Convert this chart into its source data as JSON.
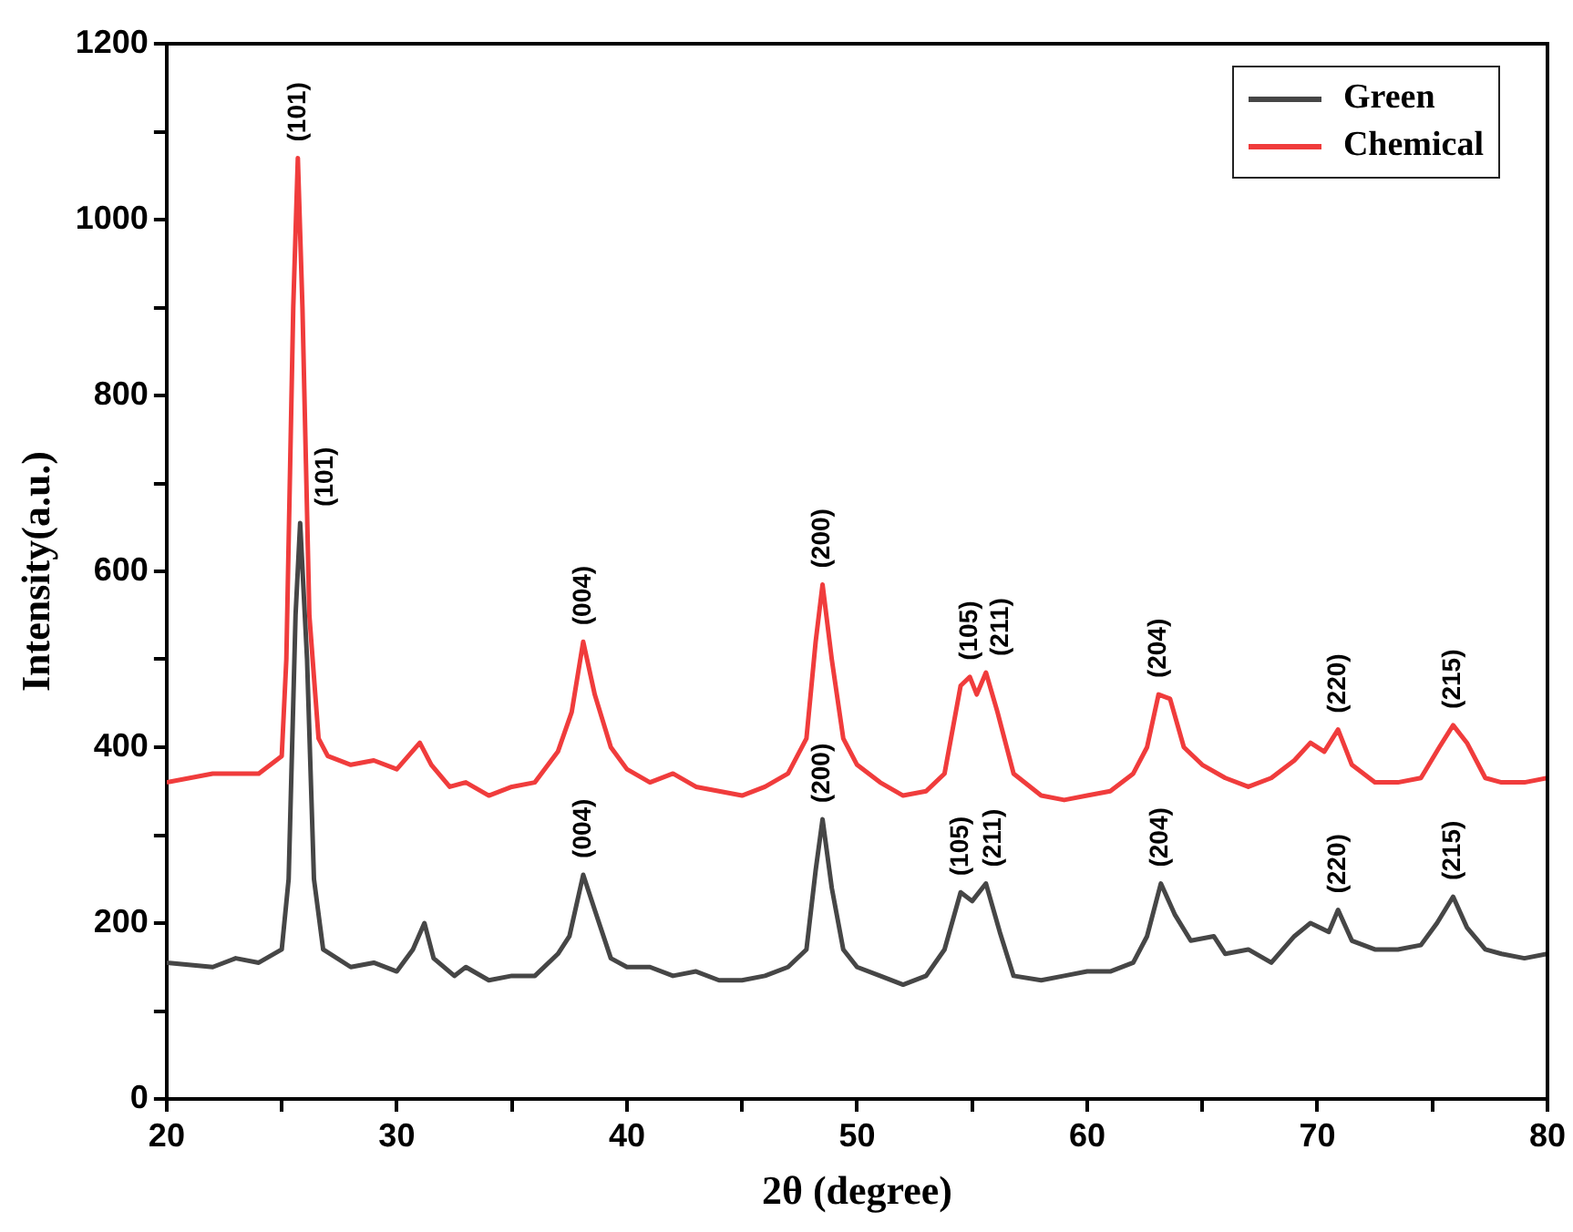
{
  "chart_data": {
    "type": "line",
    "xlabel": "2θ (degree)",
    "ylabel": "Intensity(a.u.)",
    "xlim": [
      20,
      80
    ],
    "xticks": [
      20,
      {
        "value": 25,
        "label": null
      },
      30,
      {
        "value": 35,
        "label": null
      },
      40,
      {
        "value": 45,
        "label": null
      },
      50,
      {
        "value": 55,
        "label": null
      },
      60,
      {
        "value": 65,
        "label": null
      },
      70,
      {
        "value": 75,
        "label": null
      },
      80
    ],
    "ylim": [
      0,
      1200
    ],
    "yticks": [
      0,
      {
        "value": 100,
        "label": null
      },
      200,
      {
        "value": 300,
        "label": null
      },
      400,
      {
        "value": 500,
        "label": null
      },
      600,
      {
        "value": 700,
        "label": null
      },
      800,
      {
        "value": 900,
        "label": null
      },
      1000,
      {
        "value": 1100,
        "label": null
      },
      1200
    ],
    "grid": false,
    "legend": "top right",
    "marker": "none",
    "line_style": "solid",
    "series": [
      {
        "name": "Green",
        "color": "#464646",
        "x": [
          20,
          22,
          23,
          24,
          25,
          25.3,
          25.6,
          25.8,
          26.1,
          26.4,
          26.8,
          28,
          29,
          30,
          30.7,
          31.2,
          31.6,
          32.5,
          33,
          34,
          35,
          36,
          37,
          37.5,
          38.1,
          38.6,
          39.3,
          40,
          41,
          42,
          43,
          44,
          45,
          46,
          47,
          47.8,
          48.2,
          48.5,
          48.9,
          49.4,
          50,
          51,
          52,
          53,
          53.8,
          54.5,
          55,
          55.6,
          56.2,
          56.8,
          58,
          59,
          60,
          61,
          62,
          62.6,
          63.2,
          63.8,
          64.5,
          65.5,
          66,
          67,
          68,
          69,
          69.7,
          70.5,
          70.9,
          71.5,
          72.5,
          73.5,
          74.5,
          75.2,
          75.9,
          76.5,
          77.3,
          78,
          79,
          80
        ],
        "values": [
          155,
          150,
          160,
          155,
          170,
          250,
          550,
          655,
          500,
          250,
          170,
          150,
          155,
          145,
          170,
          200,
          160,
          140,
          150,
          135,
          140,
          140,
          165,
          185,
          255,
          215,
          160,
          150,
          150,
          140,
          145,
          135,
          135,
          140,
          150,
          170,
          260,
          318,
          240,
          170,
          150,
          140,
          130,
          140,
          170,
          235,
          225,
          245,
          190,
          140,
          135,
          140,
          145,
          145,
          155,
          185,
          245,
          210,
          180,
          185,
          165,
          170,
          155,
          185,
          200,
          190,
          215,
          180,
          170,
          170,
          175,
          200,
          230,
          195,
          170,
          165,
          160,
          165
        ]
      },
      {
        "name": "Chemical",
        "color": "#f03c3c",
        "x": [
          20,
          22,
          24,
          25,
          25.2,
          25.5,
          25.7,
          25.9,
          26.2,
          26.6,
          27,
          28,
          29,
          30,
          31,
          31.5,
          32.3,
          33,
          34,
          35,
          36,
          37,
          37.6,
          38.1,
          38.6,
          39.3,
          40,
          41,
          42,
          43,
          44,
          45,
          46,
          47,
          47.8,
          48.2,
          48.5,
          48.9,
          49.4,
          50,
          51,
          52,
          53,
          53.8,
          54.5,
          54.9,
          55.2,
          55.6,
          56.1,
          56.8,
          58,
          59,
          60,
          61,
          62,
          62.6,
          63.1,
          63.6,
          64.2,
          65,
          66,
          67,
          68,
          69,
          69.7,
          70.3,
          70.9,
          71.5,
          72.5,
          73.5,
          74.5,
          75.3,
          75.9,
          76.5,
          77.3,
          78,
          79,
          80
        ],
        "values": [
          360,
          370,
          370,
          390,
          500,
          900,
          1070,
          900,
          550,
          410,
          390,
          380,
          385,
          375,
          405,
          380,
          355,
          360,
          345,
          355,
          360,
          395,
          440,
          520,
          460,
          400,
          375,
          360,
          370,
          355,
          350,
          345,
          355,
          370,
          410,
          520,
          585,
          500,
          410,
          380,
          360,
          345,
          350,
          370,
          470,
          480,
          460,
          485,
          440,
          370,
          345,
          340,
          345,
          350,
          370,
          400,
          460,
          455,
          400,
          380,
          365,
          355,
          365,
          385,
          405,
          395,
          420,
          380,
          360,
          360,
          365,
          400,
          425,
          405,
          365,
          360,
          360,
          365
        ]
      }
    ],
    "annotations": [
      {
        "text": "(101)",
        "x": 25.7,
        "y": 1070
      },
      {
        "text": "(101)",
        "x": 25.8,
        "y": 655
      },
      {
        "text": "(004)",
        "x": 38.1,
        "y": 520
      },
      {
        "text": "(004)",
        "x": 38.1,
        "y": 255
      },
      {
        "text": "(200)",
        "x": 48.5,
        "y": 585
      },
      {
        "text": "(200)",
        "x": 48.5,
        "y": 318
      },
      {
        "text": "(105)",
        "x": 54.9,
        "y": 480
      },
      {
        "text": "(211)",
        "x": 55.6,
        "y": 485
      },
      {
        "text": "(105)",
        "x": 54.5,
        "y": 235
      },
      {
        "text": "(211)",
        "x": 55.6,
        "y": 245
      },
      {
        "text": "(204)",
        "x": 63.1,
        "y": 460
      },
      {
        "text": "(204)",
        "x": 63.2,
        "y": 245
      },
      {
        "text": "(220)",
        "x": 70.9,
        "y": 420
      },
      {
        "text": "(220)",
        "x": 70.9,
        "y": 215
      },
      {
        "text": "(215)",
        "x": 75.9,
        "y": 425
      },
      {
        "text": "(215)",
        "x": 75.9,
        "y": 230
      }
    ]
  }
}
